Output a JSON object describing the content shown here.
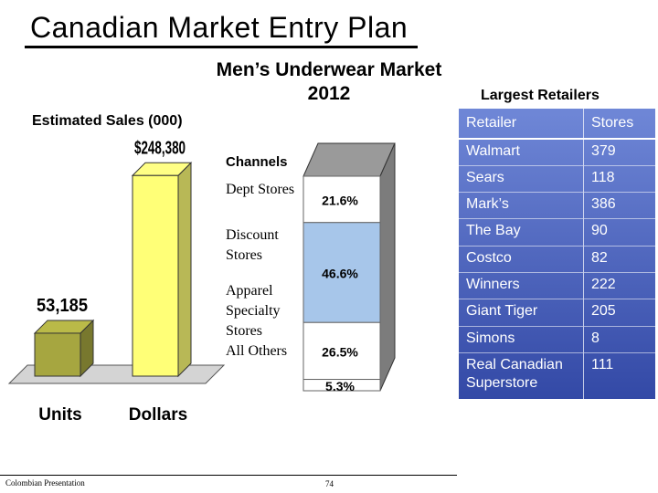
{
  "slide": {
    "title": "Canadian Market Entry Plan",
    "chart_title_line1": "Men’s Underwear Market",
    "chart_title_line2": "2012",
    "sales_label": "Estimated Sales (000)",
    "channels_label": "Channels",
    "retailers_heading": "Largest Retailers",
    "footer_text": "Colombian Presentation",
    "page_number": "74"
  },
  "legend": [
    "Dept Stores",
    "Discount Stores",
    "Apparel Specialty Stores",
    "All Others"
  ],
  "retailers": {
    "headers": [
      "Retailer",
      "Stores"
    ],
    "rows": [
      {
        "name": "Walmart",
        "stores": "379"
      },
      {
        "name": "Sears",
        "stores": "118"
      },
      {
        "name": "Mark’s",
        "stores": "386"
      },
      {
        "name": "The Bay",
        "stores": "90"
      },
      {
        "name": "Costco",
        "stores": "82"
      },
      {
        "name": "Winners",
        "stores": "222"
      },
      {
        "name": "Giant Tiger",
        "stores": "205"
      },
      {
        "name": "Simons",
        "stores": "8"
      },
      {
        "name": "Real Canadian Superstore",
        "stores": "111"
      }
    ]
  },
  "chart_data": [
    {
      "type": "bar",
      "title": "Men’s Underwear Market 2012",
      "ylabel": "Estimated Sales (000)",
      "categories": [
        "Units",
        "Dollars"
      ],
      "values": [
        53185,
        248380
      ],
      "data_labels": [
        "53,185",
        "$248,380"
      ],
      "ylim": [
        0,
        260000
      ],
      "colors": {
        "Units": "#a6a640",
        "Dollars": "#ffff77"
      }
    },
    {
      "type": "bar",
      "subtype": "stacked-100",
      "title": "Channels",
      "categories": [
        "Dept Stores",
        "Discount Stores",
        "Apparel Specialty Stores",
        "All Others"
      ],
      "values": [
        21.6,
        46.6,
        26.5,
        5.3
      ],
      "data_labels": [
        "21.6%",
        "46.6%",
        "26.5%",
        "5.3%"
      ],
      "colors": [
        "#ffffff",
        "#a7c6ea",
        "#ffffff",
        "#ffffff"
      ]
    }
  ]
}
